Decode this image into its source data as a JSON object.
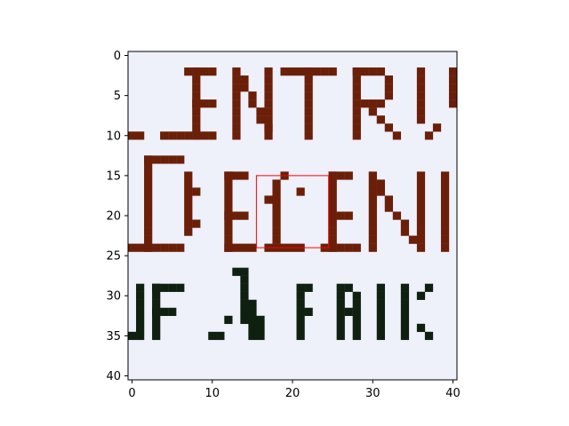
{
  "chart_data": {
    "type": "heatmap",
    "title": "",
    "xlabel": "",
    "ylabel": "",
    "xlim": [
      -0.5,
      40.5
    ],
    "ylim": [
      40.5,
      -0.5
    ],
    "grid": false,
    "x_ticks": [
      "0",
      "10",
      "20",
      "30",
      "40"
    ],
    "y_ticks": [
      "0",
      "5",
      "10",
      "15",
      "20",
      "25",
      "30",
      "35",
      "40"
    ],
    "x_tick_values": [
      0,
      10,
      20,
      30,
      40
    ],
    "y_tick_values": [
      0,
      5,
      10,
      15,
      20,
      25,
      30,
      35,
      40
    ],
    "image_text_lines": [
      "ENTR",
      "DEEN",
      "OF APPLIC"
    ],
    "highlight_box": {
      "x_min": 15.5,
      "x_max": 24.5,
      "y_min": 15,
      "y_max": 24,
      "color": "#ff0000"
    },
    "colors": {
      "background": "#eef0fa",
      "ink_brown": "#6b1f08",
      "ink_dark": "#102010",
      "axis": "#000000"
    }
  }
}
